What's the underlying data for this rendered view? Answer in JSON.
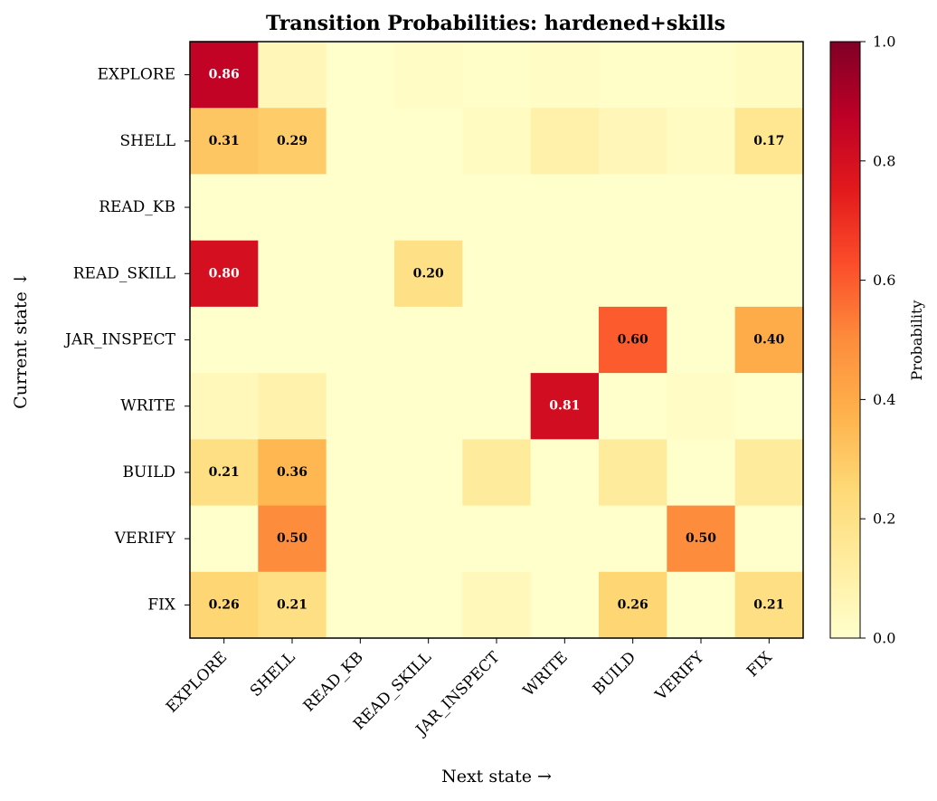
{
  "chart_data": {
    "type": "heatmap",
    "title": "Transition Probabilities: hardened+skills",
    "xlabel": "Next state →",
    "ylabel": "Current state ↓",
    "x_categories": [
      "EXPLORE",
      "SHELL",
      "READ_KB",
      "READ_SKILL",
      "JAR_INSPECT",
      "WRITE",
      "BUILD",
      "VERIFY",
      "FIX"
    ],
    "y_categories": [
      "EXPLORE",
      "SHELL",
      "READ_KB",
      "READ_SKILL",
      "JAR_INSPECT",
      "WRITE",
      "BUILD",
      "VERIFY",
      "FIX"
    ],
    "values": [
      [
        0.86,
        0.06,
        0.0,
        0.02,
        0.01,
        0.02,
        0.01,
        0.01,
        0.03
      ],
      [
        0.31,
        0.29,
        0.0,
        0.0,
        0.03,
        0.1,
        0.06,
        0.03,
        0.17
      ],
      [
        0.0,
        0.0,
        0.0,
        0.0,
        0.0,
        0.0,
        0.0,
        0.0,
        0.0
      ],
      [
        0.8,
        0.0,
        0.0,
        0.2,
        0.0,
        0.0,
        0.0,
        0.0,
        0.0
      ],
      [
        0.0,
        0.0,
        0.0,
        0.0,
        0.0,
        0.0,
        0.6,
        0.0,
        0.4
      ],
      [
        0.05,
        0.09,
        0.0,
        0.0,
        0.0,
        0.81,
        0.0,
        0.02,
        0.0
      ],
      [
        0.21,
        0.36,
        0.0,
        0.0,
        0.14,
        0.0,
        0.14,
        0.0,
        0.14
      ],
      [
        0.0,
        0.5,
        0.0,
        0.0,
        0.0,
        0.0,
        0.0,
        0.5,
        0.0
      ],
      [
        0.26,
        0.21,
        0.0,
        0.0,
        0.05,
        0.0,
        0.26,
        0.0,
        0.21
      ]
    ],
    "annotation_threshold": 0.15,
    "colormap": "YlOrRd",
    "colormap_stops": [
      "#ffffcc",
      "#ffeda0",
      "#fed976",
      "#feb24c",
      "#fd8d3c",
      "#fc4e2a",
      "#e31a1c",
      "#bd0026",
      "#800026"
    ],
    "vmin": 0.0,
    "vmax": 1.0,
    "colorbar": {
      "label": "Probability",
      "ticks": [
        "0.0",
        "0.2",
        "0.4",
        "0.6",
        "0.8",
        "1.0"
      ]
    }
  }
}
